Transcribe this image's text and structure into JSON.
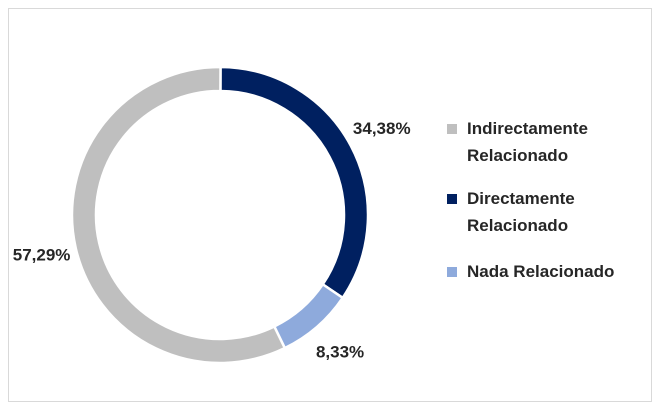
{
  "chart_data": {
    "type": "pie",
    "categories": [
      "Indirectamente Relacionado",
      "Directamente Relacionado",
      "Nada Relacionado"
    ],
    "values": [
      57.29,
      34.38,
      8.33
    ],
    "value_labels": [
      "57,29%",
      "34,38%",
      "8,33%"
    ],
    "colors": [
      "#bfbfbf",
      "#002060",
      "#8eaadc"
    ],
    "donut": true,
    "start_angle": 154,
    "legend": "right"
  }
}
